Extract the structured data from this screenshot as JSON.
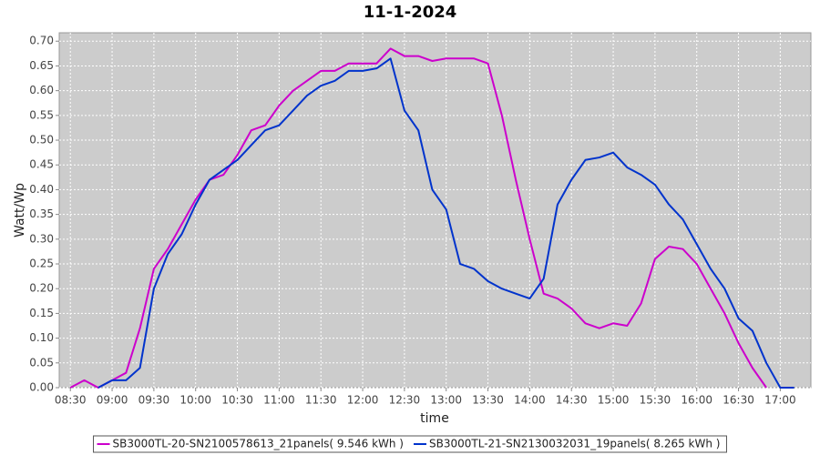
{
  "chart_data": {
    "type": "line",
    "title": "11-1-2024",
    "x_label": "time",
    "y_label": "Watt/Wp",
    "x": [
      "08:30",
      "08:40",
      "08:50",
      "09:00",
      "09:10",
      "09:20",
      "09:30",
      "09:40",
      "09:50",
      "10:00",
      "10:10",
      "10:20",
      "10:30",
      "10:40",
      "10:50",
      "11:00",
      "11:10",
      "11:20",
      "11:30",
      "11:40",
      "11:50",
      "12:00",
      "12:10",
      "12:20",
      "12:30",
      "12:40",
      "12:50",
      "13:00",
      "13:10",
      "13:20",
      "13:30",
      "13:40",
      "13:50",
      "14:00",
      "14:10",
      "14:20",
      "14:30",
      "14:40",
      "14:50",
      "15:00",
      "15:10",
      "15:20",
      "15:30",
      "15:40",
      "15:50",
      "16:00",
      "16:10",
      "16:20",
      "16:30",
      "16:40",
      "16:50",
      "17:00",
      "17:10"
    ],
    "series": [
      {
        "name": "SB3000TL-20-SN2100578613_21panels( 9.546 kWh )",
        "color": "#cc00cc",
        "values": [
          0,
          0.015,
          0,
          0.015,
          0.03,
          0.12,
          0.24,
          0.28,
          0.33,
          0.38,
          0.42,
          0.43,
          0.47,
          0.52,
          0.53,
          0.57,
          0.6,
          0.62,
          0.64,
          0.64,
          0.655,
          0.655,
          0.655,
          0.685,
          0.67,
          0.67,
          0.66,
          0.665,
          0.665,
          0.665,
          0.655,
          0.55,
          0.42,
          0.3,
          0.19,
          0.18,
          0.16,
          0.13,
          0.12,
          0.13,
          0.125,
          0.17,
          0.26,
          0.285,
          0.28,
          0.25,
          0.2,
          0.15,
          0.09,
          0.04,
          0,
          null,
          null
        ]
      },
      {
        "name": "SB3000TL-21-SN2130032031_19panels( 8.265 kWh )",
        "color": "#0033cc",
        "values": [
          null,
          null,
          0,
          0.015,
          0.015,
          0.04,
          0.2,
          0.27,
          0.31,
          0.37,
          0.42,
          0.44,
          0.46,
          0.49,
          0.52,
          0.53,
          0.56,
          0.59,
          0.61,
          0.62,
          0.64,
          0.64,
          0.645,
          0.665,
          0.56,
          0.52,
          0.4,
          0.36,
          0.25,
          0.24,
          0.215,
          0.2,
          0.19,
          0.18,
          0.22,
          0.37,
          0.42,
          0.46,
          0.465,
          0.475,
          0.445,
          0.43,
          0.41,
          0.37,
          0.34,
          0.29,
          0.24,
          0.2,
          0.14,
          0.115,
          0.05,
          0,
          0
        ]
      }
    ],
    "xlim": [
      "08:22",
      "17:22"
    ],
    "xticks": [
      "08:30",
      "09:00",
      "09:30",
      "10:00",
      "10:30",
      "11:00",
      "11:30",
      "12:00",
      "12:30",
      "13:00",
      "13:30",
      "14:00",
      "14:30",
      "15:00",
      "15:30",
      "16:00",
      "16:30",
      "17:00"
    ],
    "ylim": [
      0,
      0.717
    ],
    "yticks": [
      {
        "value": 0,
        "label": "0.00"
      },
      {
        "value": 0.05,
        "label": "0.05"
      },
      {
        "value": 0.1,
        "label": "0.10"
      },
      {
        "value": 0.15,
        "label": "0.15"
      },
      {
        "value": 0.2,
        "label": "0.20"
      },
      {
        "value": 0.25,
        "label": "0.25"
      },
      {
        "value": 0.3,
        "label": "0.30"
      },
      {
        "value": 0.35,
        "label": "0.35"
      },
      {
        "value": 0.4,
        "label": "0.40"
      },
      {
        "value": 0.45,
        "label": "0.45"
      },
      {
        "value": 0.5,
        "label": "0.50"
      },
      {
        "value": 0.55,
        "label": "0.55"
      },
      {
        "value": 0.6,
        "label": "0.60"
      },
      {
        "value": 0.65,
        "label": "0.65"
      },
      {
        "value": 0.7,
        "label": "0.70"
      }
    ],
    "grid": true,
    "legend": "bottom"
  }
}
